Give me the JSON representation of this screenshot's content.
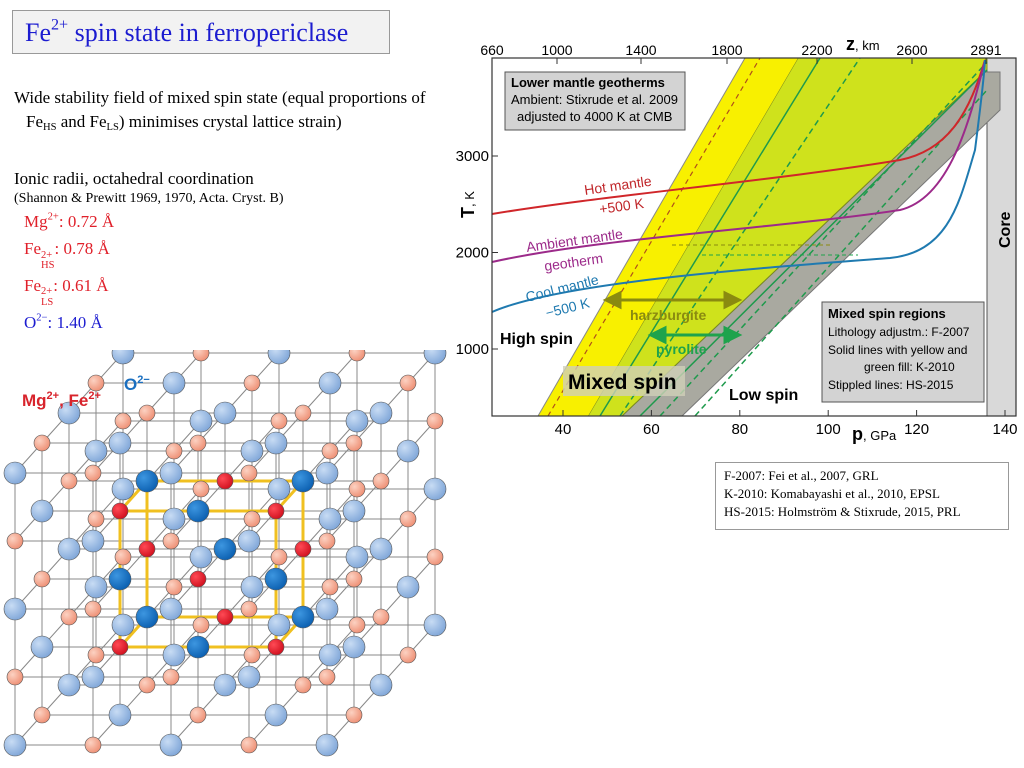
{
  "title": {
    "base": "Fe",
    "sup": "2+",
    "rest": " spin state in ferropericlase"
  },
  "paragraph1": [
    "Wide stability field of mixed spin state (equal proportions of Fe",
    "HS",
    " and Fe",
    "LS",
    ") minimises crystal lattice strain)"
  ],
  "paragraph2": {
    "heading": "Ionic radii, octahedral coordination",
    "source": "(Shannon & Prewitt 1969, 1970, Acta. Cryst. B)",
    "ions": [
      {
        "symbol": "Mg",
        "charge": "2+",
        "radius": ": 0.72 Å"
      },
      {
        "symbol": "Fe",
        "charge": "2+",
        "state": "HS",
        "radius": ": 0.78 Å"
      },
      {
        "symbol": "Fe",
        "charge": "2+",
        "state": "LS",
        "radius": ": 0.61 Å"
      },
      {
        "symbol": "O",
        "charge": "2−",
        "radius": ": 1.40 Å"
      }
    ]
  },
  "lattice_labels": {
    "cation": [
      "Mg",
      "2+",
      ", Fe",
      "2+"
    ],
    "anion": [
      "O",
      "2−"
    ]
  },
  "figure": {
    "z_axis": {
      "symbol": "z",
      "unit": ", km",
      "ticks": [
        660,
        1000,
        1400,
        1800,
        2200,
        2600,
        2891
      ]
    },
    "t_axis": {
      "symbol": "T",
      "unit": ", K",
      "ticks": [
        1000,
        2000,
        3000
      ]
    },
    "p_axis": {
      "symbol": "p",
      "unit": ", GPa",
      "ticks": [
        40,
        60,
        80,
        100,
        120,
        140
      ]
    },
    "geotherm_box": [
      "Lower mantle geotherms",
      "Ambient: Stixrude et al. 2009",
      "adjusted to 4000 K at CMB"
    ],
    "curve_labels": [
      "Hot mantle",
      "+500 K",
      "Ambient mantle",
      "geotherm",
      "Cool mantle",
      "−500 K"
    ],
    "regions": {
      "high": "High spin",
      "mixed": "Mixed spin",
      "low": "Low spin",
      "core": "Core"
    },
    "lithology": [
      "harzburgite",
      "pyrolite"
    ],
    "mixed_box": [
      "Mixed spin regions",
      "Lithology adjustm.: F-2007",
      "Solid lines with yellow and",
      "green fill: K-2010",
      "Stippled lines: HS-2015"
    ]
  },
  "references": [
    "F-2007: Fei et al., 2007, GRL",
    "K-2010: Komabayashi et al., 2010, EPSL",
    "HS-2015: Holmström & Stixrude, 2015, PRL"
  ]
}
